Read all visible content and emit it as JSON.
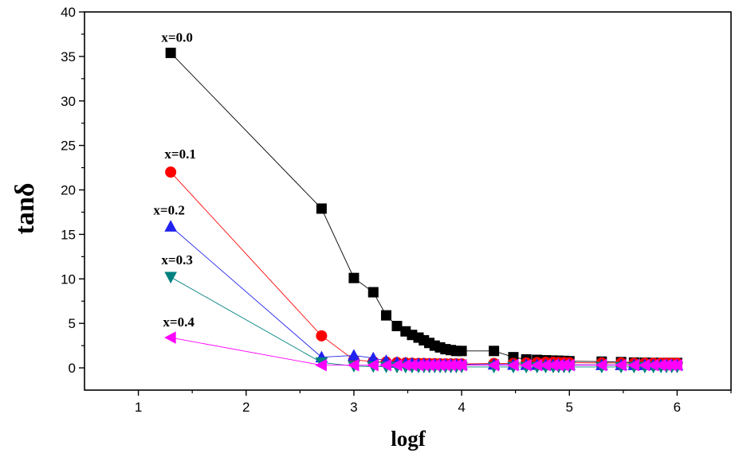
{
  "chart_data": {
    "type": "line",
    "title": "",
    "xlabel": "logf",
    "ylabel": "tanδ",
    "xlim": [
      0.5,
      6.5
    ],
    "ylim": [
      -2.5,
      40
    ],
    "xticks": [
      1,
      2,
      3,
      4,
      5,
      6
    ],
    "yticks": [
      0,
      5,
      10,
      15,
      20,
      25,
      30,
      35,
      40
    ],
    "grid": false,
    "legend": "none",
    "series": [
      {
        "name": "x=0.0",
        "color": "#000000",
        "marker": "square",
        "x": [
          1.3,
          2.7,
          3.0,
          3.18,
          3.3,
          3.4,
          3.48,
          3.54,
          3.6,
          3.65,
          3.7,
          3.75,
          3.8,
          3.85,
          3.9,
          3.95,
          4.0,
          4.3,
          4.48,
          4.6,
          4.7,
          4.78,
          4.85,
          4.9,
          4.95,
          5.0,
          5.3,
          5.48,
          5.6,
          5.7,
          5.78,
          5.85,
          5.9,
          5.95,
          6.0
        ],
        "y": [
          35.4,
          17.9,
          10.1,
          8.5,
          5.9,
          4.7,
          4.1,
          3.7,
          3.4,
          3.1,
          2.8,
          2.5,
          2.3,
          2.1,
          2.0,
          1.9,
          1.9,
          1.9,
          1.2,
          0.95,
          0.9,
          0.85,
          0.82,
          0.8,
          0.78,
          0.75,
          0.7,
          0.65,
          0.6,
          0.58,
          0.56,
          0.55,
          0.55,
          0.55,
          0.55
        ]
      },
      {
        "name": "x=0.1",
        "color": "#ff0000",
        "marker": "circle",
        "x": [
          1.3,
          2.7,
          3.0,
          3.18,
          3.3,
          3.4,
          3.48,
          3.54,
          3.6,
          3.65,
          3.7,
          3.75,
          3.8,
          3.85,
          3.9,
          3.95,
          4.0,
          4.3,
          4.48,
          4.6,
          4.7,
          4.78,
          4.85,
          4.9,
          4.95,
          5.0,
          5.3,
          5.48,
          5.6,
          5.7,
          5.78,
          5.85,
          5.9,
          5.95,
          6.0
        ],
        "y": [
          22.0,
          3.6,
          0.9,
          0.7,
          0.65,
          0.6,
          0.55,
          0.52,
          0.5,
          0.5,
          0.48,
          0.47,
          0.46,
          0.45,
          0.45,
          0.45,
          0.44,
          0.5,
          0.5,
          0.55,
          0.6,
          0.62,
          0.62,
          0.6,
          0.6,
          0.58,
          0.55,
          0.55,
          0.52,
          0.52,
          0.52,
          0.52,
          0.52,
          0.52,
          0.52
        ]
      },
      {
        "name": "x=0.2",
        "color": "#2222ee",
        "marker": "triangle-up",
        "x": [
          1.3,
          2.7,
          3.0,
          3.18,
          3.3,
          3.4,
          3.48,
          3.54,
          3.6,
          3.65,
          3.7,
          3.75,
          3.8,
          3.85,
          3.9,
          3.95,
          4.0,
          4.3,
          4.48,
          4.6,
          4.7,
          4.78,
          4.85,
          4.9,
          4.95,
          5.0,
          5.3,
          5.48,
          5.6,
          5.7,
          5.78,
          5.85,
          5.9,
          5.95,
          6.0
        ],
        "y": [
          15.9,
          1.2,
          1.4,
          1.1,
          0.8,
          0.6,
          0.55,
          0.5,
          0.45,
          0.45,
          0.42,
          0.4,
          0.4,
          0.38,
          0.38,
          0.38,
          0.37,
          0.38,
          0.36,
          0.35,
          0.35,
          0.34,
          0.34,
          0.34,
          0.34,
          0.34,
          0.33,
          0.33,
          0.33,
          0.33,
          0.33,
          0.33,
          0.33,
          0.33,
          0.33
        ]
      },
      {
        "name": "x=0.3",
        "color": "#008080",
        "marker": "triangle-down",
        "x": [
          1.3,
          2.7,
          3.0,
          3.18,
          3.3,
          3.4,
          3.48,
          3.54,
          3.6,
          3.65,
          3.7,
          3.75,
          3.8,
          3.85,
          3.9,
          3.95,
          4.0,
          4.3,
          4.48,
          4.6,
          4.7,
          4.78,
          4.85,
          4.9,
          4.95,
          5.0,
          5.3,
          5.48,
          5.6,
          5.7,
          5.78,
          5.85,
          5.9,
          5.95,
          6.0
        ],
        "y": [
          10.2,
          0.6,
          0.2,
          0.15,
          0.12,
          0.1,
          0.1,
          0.1,
          0.1,
          0.1,
          0.1,
          0.1,
          0.1,
          0.1,
          0.1,
          0.1,
          0.1,
          0.1,
          0.1,
          0.1,
          0.1,
          0.1,
          0.1,
          0.1,
          0.1,
          0.1,
          0.1,
          0.1,
          0.1,
          0.1,
          0.1,
          0.1,
          0.1,
          0.1,
          0.1
        ]
      },
      {
        "name": "x=0.4",
        "color": "#ff00ff",
        "marker": "triangle-left",
        "x": [
          1.3,
          2.7,
          3.0,
          3.18,
          3.3,
          3.4,
          3.48,
          3.54,
          3.6,
          3.65,
          3.7,
          3.75,
          3.8,
          3.85,
          3.9,
          3.95,
          4.0,
          4.3,
          4.48,
          4.6,
          4.7,
          4.78,
          4.85,
          4.9,
          4.95,
          5.0,
          5.3,
          5.48,
          5.6,
          5.7,
          5.78,
          5.85,
          5.9,
          5.95,
          6.0
        ],
        "y": [
          3.4,
          0.3,
          0.3,
          0.3,
          0.3,
          0.3,
          0.3,
          0.3,
          0.3,
          0.3,
          0.3,
          0.3,
          0.3,
          0.3,
          0.3,
          0.3,
          0.3,
          0.3,
          0.3,
          0.3,
          0.3,
          0.3,
          0.3,
          0.3,
          0.3,
          0.3,
          0.3,
          0.3,
          0.3,
          0.3,
          0.3,
          0.3,
          0.3,
          0.3,
          0.3
        ]
      }
    ],
    "annotations": [
      {
        "text": "x=0.0",
        "series": 0
      },
      {
        "text": "x=0.1",
        "series": 1
      },
      {
        "text": "x=0.2",
        "series": 2
      },
      {
        "text": "x=0.3",
        "series": 3
      },
      {
        "text": "x=0.4",
        "series": 4
      }
    ]
  }
}
